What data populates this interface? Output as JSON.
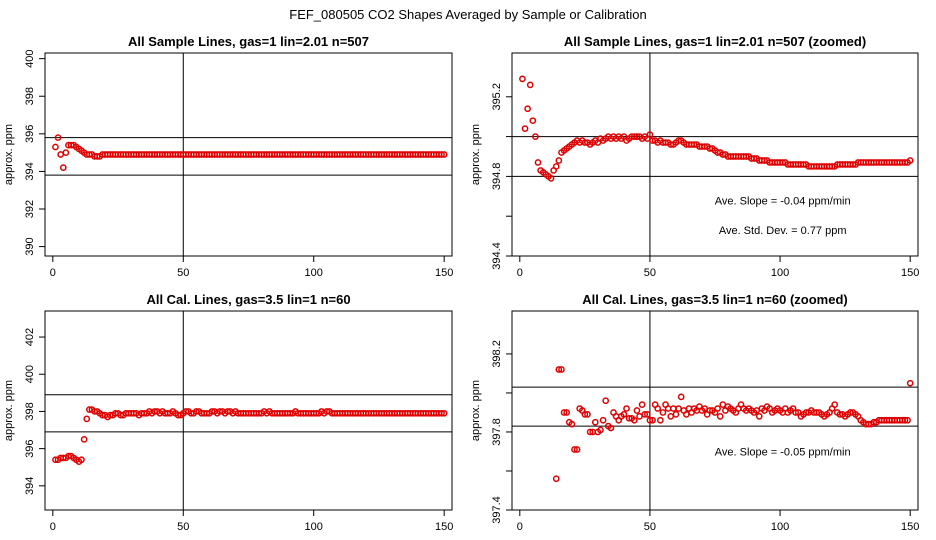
{
  "main_title": "FEF_080505  CO2 Shapes Averaged by Sample or Calibration",
  "colors": {
    "points": "#e00000",
    "lines": "#000000"
  },
  "chart_data": [
    {
      "type": "scatter",
      "title": "All Sample Lines, gas=1 lin=2.01 n=507",
      "ylabel": "approx. ppm",
      "xlim": [
        -3,
        153
      ],
      "ylim": [
        389.5,
        400.3
      ],
      "xticks": [
        0,
        50,
        100,
        150
      ],
      "yticks": [
        390,
        392,
        394,
        396,
        398,
        400
      ],
      "yticklabels": [
        "390",
        "392",
        "394",
        "396",
        "398",
        "400"
      ],
      "ref_vlines": [
        50
      ],
      "ref_hlines": [
        393.8,
        395.8
      ],
      "annotations": [],
      "x_start": 1,
      "y": [
        395.3,
        395.8,
        394.9,
        394.2,
        395.0,
        395.4,
        395.4,
        395.4,
        395.3,
        395.2,
        395.1,
        395.0,
        394.9,
        394.9,
        394.9,
        394.8,
        394.8,
        394.8,
        394.9,
        394.9,
        394.9,
        394.9,
        394.9,
        394.9,
        394.9,
        394.9,
        394.9,
        394.9,
        394.9,
        394.9,
        394.9,
        394.9,
        394.9,
        394.9,
        394.9,
        394.9,
        394.9,
        394.9,
        394.9,
        394.9,
        394.9,
        394.9,
        394.9,
        394.9,
        394.9,
        394.9,
        394.9,
        394.9,
        394.9,
        394.9,
        394.9,
        394.9,
        394.9,
        394.9,
        394.9,
        394.9,
        394.9,
        394.9,
        394.9,
        394.9,
        394.9,
        394.9,
        394.9,
        394.9,
        394.9,
        394.9,
        394.9,
        394.9,
        394.9,
        394.9,
        394.9,
        394.9,
        394.9,
        394.9,
        394.9,
        394.9,
        394.9,
        394.9,
        394.9,
        394.9,
        394.9,
        394.9,
        394.9,
        394.9,
        394.9,
        394.9,
        394.9,
        394.9,
        394.9,
        394.9,
        394.9,
        394.9,
        394.9,
        394.9,
        394.9,
        394.9,
        394.9,
        394.9,
        394.9,
        394.9,
        394.9,
        394.9,
        394.9,
        394.9,
        394.9,
        394.9,
        394.9,
        394.9,
        394.9,
        394.9,
        394.9,
        394.9,
        394.9,
        394.9,
        394.9,
        394.9,
        394.9,
        394.9,
        394.9,
        394.9,
        394.9,
        394.9,
        394.9,
        394.9,
        394.9,
        394.9,
        394.9,
        394.9,
        394.9,
        394.9,
        394.9,
        394.9,
        394.9,
        394.9,
        394.9,
        394.9,
        394.9,
        394.9,
        394.9,
        394.9,
        394.9,
        394.9,
        394.9,
        394.9,
        394.9,
        394.9,
        394.9,
        394.9,
        394.9,
        394.9
      ]
    },
    {
      "type": "scatter",
      "title": "All Sample Lines, gas=1 lin=2.01 n=507 (zoomed)",
      "ylabel": "approx. ppm",
      "xlim": [
        -3,
        153
      ],
      "ylim": [
        394.4,
        395.42
      ],
      "xticks": [
        0,
        50,
        100,
        150
      ],
      "yticks": [
        394.4,
        394.6,
        394.8,
        395.0,
        395.2
      ],
      "yticklabels": [
        "394.4",
        "",
        "394.8",
        "",
        "395.2"
      ],
      "ref_vlines": [
        50
      ],
      "ref_hlines": [
        394.8,
        395.0
      ],
      "annotations": [
        {
          "text": "Ave. Slope =  -0.04  ppm/min",
          "x": 101,
          "y": 394.66
        },
        {
          "text": "Ave. Std. Dev. =  0.77  ppm",
          "x": 101,
          "y": 394.51
        }
      ],
      "x_start": 1,
      "y": [
        395.29,
        395.04,
        395.14,
        395.26,
        395.08,
        395.0,
        394.87,
        394.83,
        394.82,
        394.81,
        394.8,
        394.79,
        394.83,
        394.85,
        394.88,
        394.92,
        394.93,
        394.94,
        394.95,
        394.96,
        394.97,
        394.98,
        394.97,
        394.98,
        394.97,
        394.97,
        394.96,
        394.97,
        394.98,
        394.97,
        394.99,
        394.98,
        394.99,
        395.0,
        394.99,
        395.0,
        394.99,
        395.0,
        394.99,
        395.0,
        394.98,
        394.99,
        395.0,
        395.0,
        395.0,
        395.0,
        394.99,
        395.0,
        394.99,
        395.01,
        394.98,
        394.98,
        394.97,
        394.98,
        394.97,
        394.97,
        394.97,
        394.96,
        394.96,
        394.97,
        394.98,
        394.98,
        394.97,
        394.96,
        394.96,
        394.96,
        394.96,
        394.96,
        394.95,
        394.95,
        394.95,
        394.95,
        394.94,
        394.94,
        394.93,
        394.92,
        394.92,
        394.91,
        394.91,
        394.9,
        394.9,
        394.9,
        394.9,
        394.9,
        394.9,
        394.9,
        394.9,
        394.9,
        394.89,
        394.89,
        394.89,
        394.88,
        394.88,
        394.88,
        394.88,
        394.87,
        394.87,
        394.87,
        394.87,
        394.87,
        394.87,
        394.87,
        394.86,
        394.86,
        394.86,
        394.86,
        394.86,
        394.86,
        394.86,
        394.86,
        394.85,
        394.85,
        394.85,
        394.85,
        394.85,
        394.85,
        394.85,
        394.85,
        394.85,
        394.85,
        394.85,
        394.86,
        394.86,
        394.86,
        394.86,
        394.86,
        394.86,
        394.86,
        394.86,
        394.87,
        394.87,
        394.87,
        394.87,
        394.87,
        394.87,
        394.87,
        394.87,
        394.87,
        394.87,
        394.87,
        394.87,
        394.87,
        394.87,
        394.87,
        394.87,
        394.87,
        394.87,
        394.87,
        394.87,
        394.88
      ]
    },
    {
      "type": "scatter",
      "title": "All Cal. Lines, gas=3.5 lin=1 n=60",
      "ylabel": "approx. ppm",
      "xlim": [
        -3,
        153
      ],
      "ylim": [
        392.7,
        403.4
      ],
      "xticks": [
        0,
        50,
        100,
        150
      ],
      "yticks": [
        394,
        396,
        398,
        400,
        402
      ],
      "yticklabels": [
        "394",
        "396",
        "398",
        "400",
        "402"
      ],
      "ref_vlines": [
        50
      ],
      "ref_hlines": [
        396.9,
        398.9
      ],
      "annotations": [],
      "x_start": 1,
      "y": [
        395.4,
        395.4,
        395.5,
        395.5,
        395.5,
        395.6,
        395.6,
        395.5,
        395.4,
        395.3,
        395.4,
        396.5,
        397.6,
        398.1,
        398.1,
        398.0,
        398.0,
        397.9,
        397.8,
        397.8,
        397.7,
        397.8,
        397.8,
        397.9,
        397.9,
        397.8,
        397.8,
        397.9,
        397.9,
        397.9,
        397.9,
        397.9,
        397.8,
        397.9,
        397.9,
        397.9,
        398.0,
        397.9,
        398.0,
        398.0,
        397.9,
        398.0,
        397.9,
        397.9,
        397.9,
        398.0,
        397.9,
        397.8,
        397.8,
        397.9,
        398.0,
        398.0,
        397.9,
        397.9,
        398.0,
        398.0,
        397.9,
        397.9,
        397.9,
        397.9,
        398.0,
        398.0,
        397.9,
        398.0,
        398.0,
        397.9,
        398.0,
        398.0,
        397.9,
        398.0,
        397.9,
        397.9,
        397.9,
        397.9,
        397.9,
        397.9,
        397.9,
        397.9,
        397.9,
        397.9,
        398.0,
        397.9,
        398.0,
        397.9,
        397.9,
        397.9,
        397.9,
        397.9,
        397.9,
        397.9,
        397.9,
        397.9,
        398.0,
        397.9,
        397.9,
        397.9,
        397.9,
        397.9,
        397.9,
        397.9,
        397.9,
        397.9,
        398.0,
        397.9,
        398.0,
        398.0,
        397.9,
        397.9,
        397.9,
        397.9,
        397.9,
        397.9,
        397.9,
        397.9,
        397.9,
        397.9,
        397.9,
        397.9,
        397.9,
        397.9,
        397.9,
        397.9,
        397.9,
        397.9,
        397.9,
        397.9,
        397.9,
        397.9,
        397.9,
        397.9,
        397.9,
        397.9,
        397.9,
        397.9,
        397.9,
        397.9,
        397.9,
        397.9,
        397.9,
        397.9,
        397.9,
        397.9,
        397.9,
        397.9,
        397.9,
        397.9,
        397.9,
        397.9,
        397.9,
        397.9
      ]
    },
    {
      "type": "scatter",
      "title": "All Cal. Lines, gas=3.5 lin=1 n=60 (zoomed)",
      "ylabel": "approx. ppm",
      "xlim": [
        -3,
        153
      ],
      "ylim": [
        397.4,
        398.42
      ],
      "xticks": [
        0,
        50,
        100,
        150
      ],
      "yticks": [
        397.4,
        397.6,
        397.8,
        398.0,
        398.2
      ],
      "yticklabels": [
        "397.4",
        "",
        "397.8",
        "",
        "398.2"
      ],
      "ref_vlines": [
        50
      ],
      "ref_hlines": [
        397.83,
        398.03
      ],
      "annotations": [
        {
          "text": "Ave. Slope =  -0.05  ppm/min",
          "x": 101,
          "y": 397.68
        }
      ],
      "x_start": 14,
      "y": [
        397.56,
        398.12,
        398.12,
        397.9,
        397.9,
        397.85,
        397.84,
        397.71,
        397.71,
        397.92,
        397.91,
        397.89,
        397.89,
        397.8,
        397.8,
        397.85,
        397.8,
        397.81,
        397.86,
        397.96,
        397.83,
        397.82,
        397.9,
        397.88,
        397.86,
        397.88,
        397.89,
        397.92,
        397.87,
        397.87,
        397.86,
        397.91,
        397.88,
        397.94,
        397.89,
        397.89,
        397.86,
        397.86,
        397.94,
        397.92,
        397.86,
        397.9,
        397.94,
        397.92,
        397.88,
        397.92,
        397.89,
        397.92,
        397.98,
        397.91,
        397.89,
        397.92,
        397.9,
        397.92,
        397.91,
        397.93,
        397.91,
        397.92,
        397.89,
        397.91,
        397.91,
        397.9,
        397.92,
        397.88,
        397.94,
        397.91,
        397.93,
        397.92,
        397.91,
        397.9,
        397.92,
        397.94,
        397.92,
        397.91,
        397.92,
        397.91,
        397.9,
        397.91,
        397.88,
        397.92,
        397.91,
        397.93,
        397.92,
        397.9,
        397.91,
        397.92,
        397.91,
        397.9,
        397.92,
        397.9,
        397.91,
        397.92,
        397.9,
        397.9,
        397.88,
        397.89,
        397.9,
        397.9,
        397.91,
        397.9,
        397.9,
        397.9,
        397.89,
        397.88,
        397.89,
        397.9,
        397.92,
        397.94,
        397.9,
        397.89,
        397.89,
        397.88,
        397.89,
        397.9,
        397.9,
        397.89,
        397.88,
        397.86,
        397.85,
        397.84,
        397.84,
        397.84,
        397.85,
        397.85,
        397.86,
        397.86,
        397.86,
        397.86,
        397.86,
        397.86,
        397.86,
        397.86,
        397.86,
        397.86,
        397.86,
        397.86,
        398.05
      ]
    }
  ]
}
